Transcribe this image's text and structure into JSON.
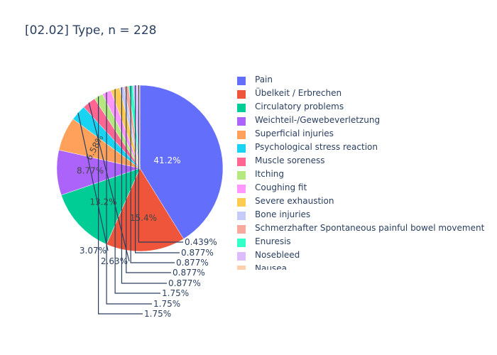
{
  "chart_data": {
    "type": "pie",
    "title": "[02.02] Type, n = 228",
    "legend_position": "right",
    "slices": [
      {
        "label": "Pain",
        "value": 41.2,
        "text": "41.2%",
        "color": "#636efa"
      },
      {
        "label": "Übelkeit / Erbrechen",
        "value": 15.4,
        "text": "15.4%",
        "color": "#EF553B"
      },
      {
        "label": "Circulatory problems",
        "value": 13.2,
        "text": "13.2%",
        "color": "#00cc96"
      },
      {
        "label": "Weichteil-/Gewebeverletzung",
        "value": 8.77,
        "text": "8.77%",
        "color": "#ab63fa"
      },
      {
        "label": "Superficial injuries",
        "value": 6.58,
        "text": "6.58%",
        "color": "#FFA15A"
      },
      {
        "label": "Psychological stress reaction",
        "value": 3.07,
        "text": "3.07%",
        "color": "#19d3f3"
      },
      {
        "label": "Muscle soreness",
        "value": 2.63,
        "text": "2.63%",
        "color": "#FF6692"
      },
      {
        "label": "Itching",
        "value": 1.75,
        "text": "1.75%",
        "color": "#B6E880"
      },
      {
        "label": "Coughing fit",
        "value": 1.75,
        "text": "1.75%",
        "color": "#FF97FF"
      },
      {
        "label": "Severe exhaustion",
        "value": 1.75,
        "text": "1.75%",
        "color": "#FECB52"
      },
      {
        "label": "Bone injuries",
        "value": 0.877,
        "text": "0.877%",
        "color": "#c6caf9"
      },
      {
        "label": "Schmerzhafter Spontaneous painful bowel movement",
        "value": 0.877,
        "text": "0.877%",
        "color": "#f7aa9c"
      },
      {
        "label": "Enuresis",
        "value": 0.877,
        "text": "0.877%",
        "color": "#33ffc9"
      },
      {
        "label": "Nosebleed",
        "value": 0.877,
        "text": "0.877%",
        "color": "#dcbcfd"
      },
      {
        "label": "Nausea",
        "value": 0.439,
        "text": "0.439%",
        "color": "#ffd0ac"
      }
    ]
  }
}
